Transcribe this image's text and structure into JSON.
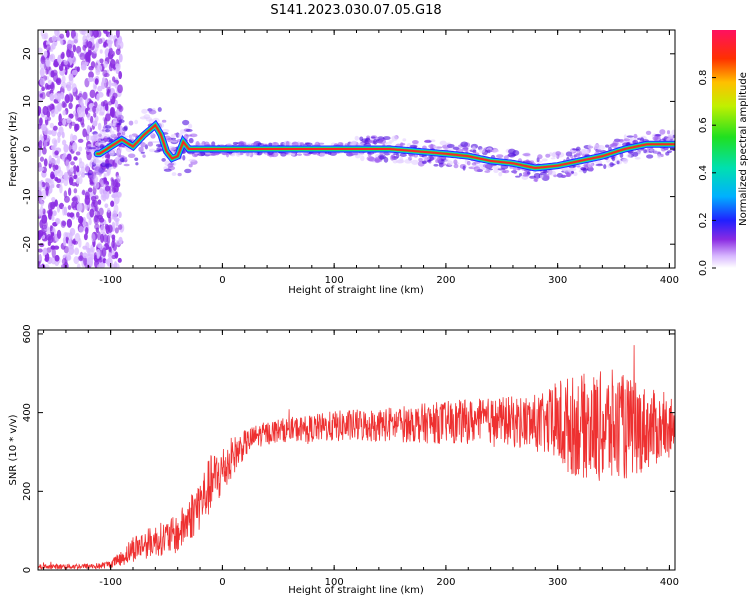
{
  "title": "S141.2023.030.07.05.G18",
  "chart_data": [
    {
      "type": "heatmap",
      "xlabel": "Height of straight line (km)",
      "ylabel": "Frequency (Hz)",
      "xlim": [
        -165,
        405
      ],
      "ylim": [
        -25,
        25
      ],
      "x_ticks": [
        -100,
        0,
        100,
        200,
        300,
        400
      ],
      "y_ticks": [
        -20,
        -10,
        0,
        10,
        20
      ],
      "colorbar": {
        "label": "Normalized spectral amplitude",
        "range": [
          0,
          1
        ],
        "ticks": [
          0.0,
          0.2,
          0.4,
          0.6,
          0.8
        ]
      },
      "ridge": {
        "x": [
          -110,
          -100,
          -90,
          -80,
          -70,
          -60,
          -55,
          -50,
          -45,
          -40,
          -35,
          -30,
          0,
          50,
          100,
          150,
          200,
          220,
          240,
          260,
          280,
          300,
          320,
          340,
          360,
          380,
          400
        ],
        "y": [
          -1,
          0.5,
          2,
          0.5,
          3,
          5,
          3,
          -0.5,
          -2,
          -1.5,
          1.5,
          0,
          0,
          0,
          0,
          0,
          -1,
          -1.5,
          -2.5,
          -3,
          -4,
          -3.5,
          -2.5,
          -1.5,
          0,
          1,
          1
        ]
      }
    },
    {
      "type": "line",
      "xlabel": "Height of straight line (km)",
      "ylabel": "SNR (10 * v/v)",
      "xlim": [
        -165,
        405
      ],
      "ylim": [
        0,
        610
      ],
      "x_ticks": [
        -100,
        0,
        100,
        200,
        300,
        400
      ],
      "y_ticks": [
        0,
        200,
        400,
        600
      ],
      "color": "#ee3030",
      "envelope": {
        "x": [
          -165,
          -110,
          -100,
          -90,
          -80,
          -60,
          -40,
          -30,
          -20,
          -10,
          0,
          10,
          20,
          30,
          50,
          80,
          100,
          150,
          200,
          250,
          290,
          300,
          350,
          405
        ],
        "mean": [
          8,
          10,
          15,
          30,
          55,
          75,
          90,
          130,
          170,
          220,
          250,
          290,
          320,
          340,
          355,
          360,
          365,
          370,
          375,
          380,
          370,
          370,
          360,
          360
        ],
        "spread": [
          6,
          8,
          10,
          20,
          35,
          40,
          50,
          60,
          70,
          75,
          70,
          50,
          35,
          30,
          30,
          35,
          40,
          45,
          55,
          60,
          80,
          120,
          150,
          70
        ]
      }
    }
  ]
}
